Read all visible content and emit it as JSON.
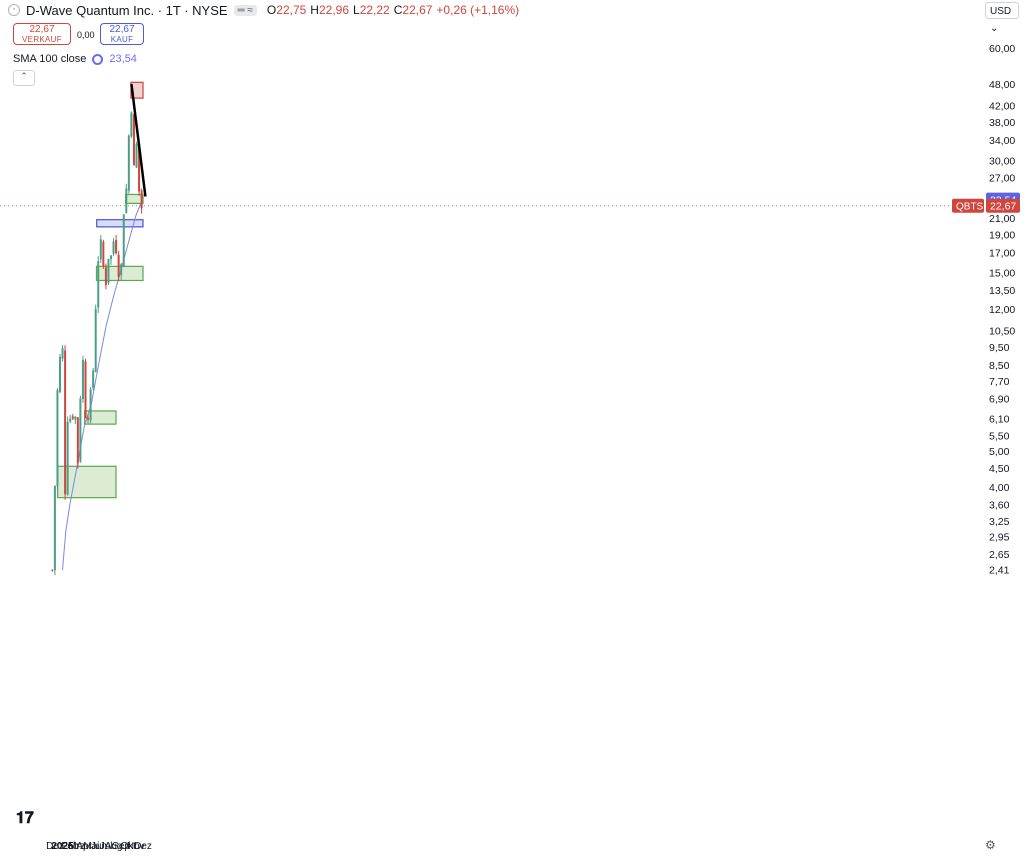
{
  "header": {
    "title": "D-Wave Quantum Inc. · 1T · NYSE",
    "pill": "═ ≈",
    "ohlc": [
      {
        "label": "O",
        "value": "22,75"
      },
      {
        "label": "H",
        "value": "22,96"
      },
      {
        "label": "L",
        "value": "22,22"
      },
      {
        "label": "C",
        "value": "22,67"
      },
      {
        "label": "",
        "value": "+0,26 (+1,16%)"
      }
    ],
    "sell_price": "22,67",
    "sell_label": "VERKAUF",
    "spread": "0,00",
    "buy_price": "22,67",
    "buy_label": "KAUF",
    "sma_label": "SMA 100 close",
    "sma_value": "23,54",
    "currency": "USD"
  },
  "colors": {
    "up": "#4b9e87",
    "down": "#d0463e",
    "sma": "#7c86e8",
    "green_zone_fill": "#dcebd3",
    "green_zone_stroke": "#5aa84a",
    "blue_zone_fill": "#d8dcf5",
    "blue_zone_stroke": "#4a55d8",
    "red_zone_fill": "#f1d2d0",
    "red_zone_stroke": "#c8453d"
  },
  "chart_data": {
    "type": "candlestick",
    "symbol": "QBTS",
    "scale": "log",
    "price_labels": [
      "60,00",
      "48,00",
      "42,00",
      "38,00",
      "34,00",
      "30,00",
      "27,00",
      "24,00",
      "21,00",
      "19,00",
      "17,00",
      "15,00",
      "13,50",
      "12,00",
      "10,50",
      "9,50",
      "8,50",
      "7,70",
      "6,90",
      "6,10",
      "5,50",
      "5,00",
      "4,50",
      "4,00",
      "3,60",
      "3,25",
      "2,95",
      "2,65",
      "2,41"
    ],
    "price_values": [
      60,
      48,
      42,
      38,
      34,
      30,
      27,
      24,
      21,
      19,
      17,
      15,
      13.5,
      12,
      10.5,
      9.5,
      8.5,
      7.7,
      6.9,
      6.1,
      5.5,
      5.0,
      4.5,
      4.0,
      3.6,
      3.25,
      2.95,
      2.65,
      2.41
    ],
    "time_labels": [
      {
        "label": "Dez",
        "date": "2024-12-01",
        "bold": false
      },
      {
        "label": "2025",
        "date": "2025-01-01",
        "bold": true
      },
      {
        "label": "Feb",
        "date": "2025-02-01",
        "bold": false
      },
      {
        "label": "Mrz",
        "date": "2025-03-01",
        "bold": false
      },
      {
        "label": "Apr",
        "date": "2025-04-01",
        "bold": false
      },
      {
        "label": "Mai",
        "date": "2025-05-01",
        "bold": false
      },
      {
        "label": "Jun",
        "date": "2025-06-01",
        "bold": false
      },
      {
        "label": "Jul",
        "date": "2025-07-01",
        "bold": false
      },
      {
        "label": "Aug",
        "date": "2025-08-01",
        "bold": false
      },
      {
        "label": "Sep",
        "date": "2025-09-01",
        "bold": false
      },
      {
        "label": "Okt",
        "date": "2025-10-01",
        "bold": false
      },
      {
        "label": "Nov",
        "date": "2025-11-01",
        "bold": false
      },
      {
        "label": "Dez",
        "date": "2025-12-01",
        "bold": false
      }
    ],
    "price_path": [
      [
        "2024-11-20",
        2.4
      ],
      [
        "2024-11-26",
        3.0
      ],
      [
        "2024-11-29",
        3.7
      ],
      [
        "2024-12-02",
        4.4
      ],
      [
        "2024-12-05",
        5.1
      ],
      [
        "2024-12-09",
        5.6
      ],
      [
        "2024-12-12",
        8.0
      ],
      [
        "2024-12-16",
        8.9
      ],
      [
        "2024-12-19",
        7.5
      ],
      [
        "2024-12-23",
        9.5
      ],
      [
        "2024-12-27",
        10.6
      ],
      [
        "2024-12-31",
        8.5
      ],
      [
        "2025-01-03",
        10.4
      ],
      [
        "2025-01-06",
        9.5
      ],
      [
        "2025-01-08",
        5.2
      ],
      [
        "2025-01-10",
        4.0
      ],
      [
        "2025-01-13",
        3.9
      ],
      [
        "2025-01-16",
        4.6
      ],
      [
        "2025-01-20",
        6.0
      ],
      [
        "2025-01-24",
        6.3
      ],
      [
        "2025-01-29",
        5.9
      ],
      [
        "2025-02-03",
        6.2
      ],
      [
        "2025-02-07",
        5.8
      ],
      [
        "2025-02-12",
        6.3
      ],
      [
        "2025-02-17",
        6.1
      ],
      [
        "2025-02-21",
        6.6
      ],
      [
        "2025-02-25",
        5.8
      ],
      [
        "2025-03-03",
        4.9
      ],
      [
        "2025-03-07",
        4.6
      ],
      [
        "2025-03-11",
        5.0
      ],
      [
        "2025-03-14",
        6.0
      ],
      [
        "2025-03-17",
        7.4
      ],
      [
        "2025-03-19",
        11.0
      ],
      [
        "2025-03-21",
        10.0
      ],
      [
        "2025-03-25",
        9.2
      ],
      [
        "2025-03-28",
        8.4
      ],
      [
        "2025-04-02",
        7.8
      ],
      [
        "2025-04-04",
        7.0
      ],
      [
        "2025-04-07",
        6.2
      ],
      [
        "2025-04-09",
        6.9
      ],
      [
        "2025-04-14",
        6.6
      ],
      [
        "2025-04-17",
        6.3
      ],
      [
        "2025-04-22",
        7.0
      ],
      [
        "2025-04-25",
        7.3
      ],
      [
        "2025-04-29",
        6.9
      ],
      [
        "2025-05-02",
        7.1
      ],
      [
        "2025-05-06",
        6.9
      ],
      [
        "2025-05-09",
        8.8
      ],
      [
        "2025-05-12",
        10.8
      ],
      [
        "2025-05-16",
        11.5
      ],
      [
        "2025-05-20",
        12.6
      ],
      [
        "2025-05-22",
        14.6
      ],
      [
        "2025-05-23",
        17.5
      ],
      [
        "2025-05-27",
        18.2
      ],
      [
        "2025-05-30",
        16.0
      ],
      [
        "2025-06-04",
        16.6
      ],
      [
        "2025-06-09",
        17.8
      ],
      [
        "2025-06-13",
        16.2
      ],
      [
        "2025-06-18",
        15.3
      ],
      [
        "2025-06-23",
        15.9
      ],
      [
        "2025-06-27",
        14.4
      ],
      [
        "2025-07-01",
        14.2
      ],
      [
        "2025-07-07",
        15.3
      ],
      [
        "2025-07-11",
        16.8
      ],
      [
        "2025-07-16",
        17.4
      ],
      [
        "2025-07-21",
        16.4
      ],
      [
        "2025-07-25",
        19.2
      ],
      [
        "2025-07-29",
        19.4
      ],
      [
        "2025-08-01",
        18.2
      ],
      [
        "2025-08-06",
        17.2
      ],
      [
        "2025-08-11",
        17.6
      ],
      [
        "2025-08-15",
        16.4
      ],
      [
        "2025-08-20",
        15.1
      ],
      [
        "2025-08-25",
        15.4
      ],
      [
        "2025-08-29",
        15.3
      ],
      [
        "2025-09-04",
        15.8
      ],
      [
        "2025-09-09",
        17.8
      ],
      [
        "2025-09-12",
        22.0
      ],
      [
        "2025-09-16",
        25.5
      ],
      [
        "2025-09-19",
        27.0
      ],
      [
        "2025-09-24",
        24.5
      ],
      [
        "2025-09-29",
        30.0
      ],
      [
        "2025-10-03",
        35.0
      ],
      [
        "2025-10-08",
        33.5
      ],
      [
        "2025-10-14",
        42.0
      ],
      [
        "2025-10-16",
        40.0
      ],
      [
        "2025-10-20",
        33.0
      ],
      [
        "2025-10-24",
        28.0
      ],
      [
        "2025-10-29",
        32.5
      ],
      [
        "2025-11-03",
        34.0
      ],
      [
        "2025-11-07",
        29.5
      ],
      [
        "2025-11-12",
        27.5
      ],
      [
        "2025-11-17",
        22.5
      ],
      [
        "2025-11-20",
        21.5
      ],
      [
        "2025-11-24",
        22.3
      ],
      [
        "2025-11-28",
        22.67
      ]
    ],
    "sma100": [
      [
        "2025-01-01",
        2.4
      ],
      [
        "2025-01-15",
        3.05
      ],
      [
        "2025-02-01",
        3.6
      ],
      [
        "2025-03-01",
        4.5
      ],
      [
        "2025-04-01",
        5.8
      ],
      [
        "2025-05-01",
        6.7
      ],
      [
        "2025-06-01",
        8.6
      ],
      [
        "2025-07-01",
        10.8
      ],
      [
        "2025-08-01",
        13.0
      ],
      [
        "2025-09-01",
        15.3
      ],
      [
        "2025-10-01",
        18.0
      ],
      [
        "2025-11-01",
        21.3
      ],
      [
        "2025-11-28",
        23.54
      ]
    ],
    "zones": [
      {
        "color": "green",
        "from": "2024-12-12",
        "to": "2025-08-11",
        "low": 3.75,
        "high": 4.55
      },
      {
        "color": "green",
        "from": "2025-04-03",
        "to": "2025-08-11",
        "low": 5.9,
        "high": 6.4
      },
      {
        "color": "green",
        "from": "2025-05-22",
        "to": "2025-12-01",
        "low": 14.3,
        "high": 15.6
      },
      {
        "color": "blue",
        "from": "2025-05-23",
        "to": "2025-12-01",
        "low": 19.9,
        "high": 20.8
      },
      {
        "color": "green",
        "from": "2025-09-20",
        "to": "2025-12-01",
        "low": 23.0,
        "high": 24.3
      },
      {
        "color": "red",
        "from": "2025-10-12",
        "to": "2025-12-01",
        "low": 44.0,
        "high": 48.5
      }
    ],
    "trendline": [
      [
        "2025-10-14",
        48.0
      ],
      [
        "2025-12-11",
        24.0
      ]
    ],
    "last_price": "22,67",
    "last_value": 22.67,
    "sma_last": "23,54",
    "sma_last_value": 23.54
  }
}
